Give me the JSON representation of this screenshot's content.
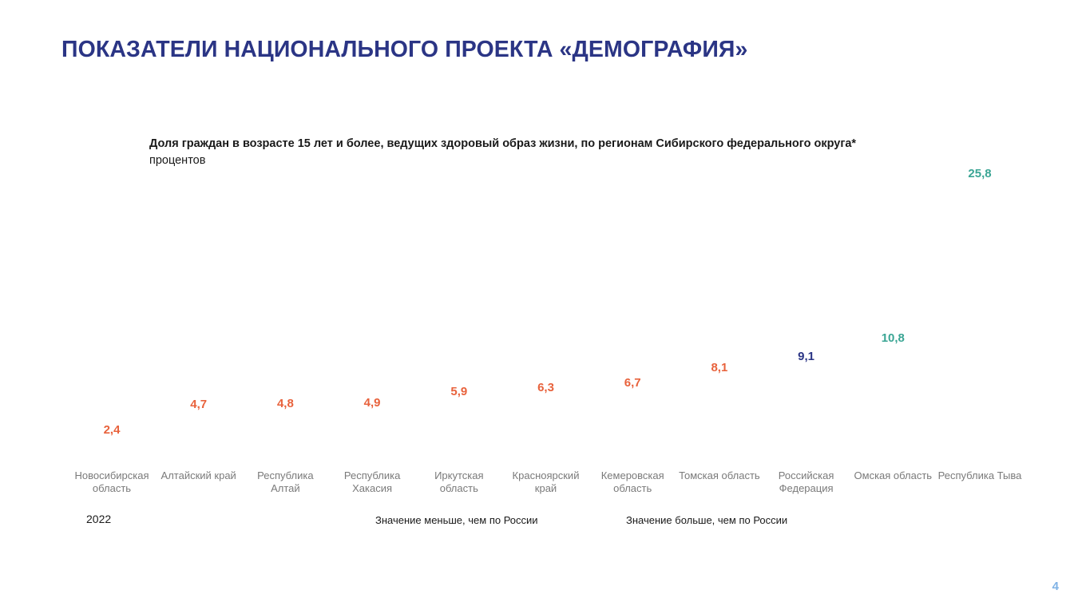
{
  "page": {
    "title": "ПОКАЗАТЕЛИ НАЦИОНАЛЬНОГО ПРОЕКТА «ДЕМОГРАФИЯ»",
    "page_number": "4"
  },
  "chart_data": {
    "type": "scatter",
    "title": "Доля граждан в возрасте 15 лет и более, ведущих здоровый образ жизни, по регионам Сибирского федерального округа*",
    "unit": "процентов",
    "year": "2022",
    "categories": [
      "Новосибирская область",
      "Алтайский край",
      "Республика Алтай",
      "Республика Хакасия",
      "Иркутская область",
      "Красноярский край",
      "Кемеровская область",
      "Томская область",
      "Российская Федерация",
      "Омская область",
      "Республика Тыва"
    ],
    "values": [
      2.4,
      4.7,
      4.8,
      4.9,
      5.9,
      6.3,
      6.7,
      8.1,
      9.1,
      10.8,
      25.8
    ],
    "value_labels": [
      "2,4",
      "4,7",
      "4,8",
      "4,9",
      "5,9",
      "6,3",
      "6,7",
      "8,1",
      "9,1",
      "10,8",
      "25,8"
    ],
    "groups": [
      "lower",
      "lower",
      "lower",
      "lower",
      "lower",
      "lower",
      "lower",
      "lower",
      "russia",
      "higher",
      "higher"
    ],
    "colors": {
      "lower": "#e8623c",
      "russia": "#2b3585",
      "higher": "#3aa594"
    },
    "legend": {
      "lower": "Значение меньше, чем по России",
      "higher": "Значение больше, чем по России"
    },
    "ylim": [
      0,
      25.8
    ],
    "grid": false
  }
}
